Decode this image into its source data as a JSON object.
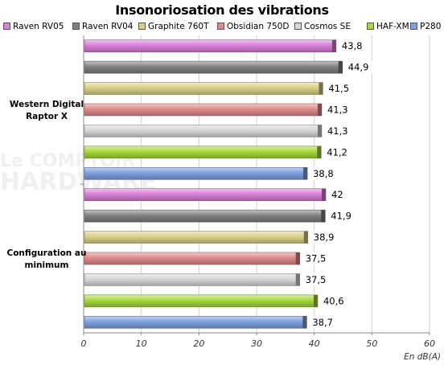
{
  "chart_data": {
    "type": "bar",
    "orientation": "horizontal",
    "title": "Insonoriosation des vibrations",
    "xlabel": "En dB(A)",
    "xlim": [
      0,
      60
    ],
    "xticks": [
      "0",
      "10",
      "20",
      "30",
      "40",
      "50",
      "60"
    ],
    "grid": "vertical",
    "legend_position": "top",
    "categories": [
      "Western Digital Raptor X",
      "Configuration au minimum"
    ],
    "category_lines": [
      [
        "Western Digital",
        "Raptor X"
      ],
      [
        "Configuration au",
        "minimum"
      ]
    ],
    "series": [
      {
        "name": "Raven RV05",
        "color": "#d87fd8",
        "values": [
          43.8,
          42
        ],
        "labels": [
          "43,8",
          "42"
        ]
      },
      {
        "name": "Raven RV04",
        "color": "#808080",
        "values": [
          44.9,
          41.9
        ],
        "labels": [
          "44,9",
          "41,9"
        ]
      },
      {
        "name": "Graphite 760T",
        "color": "#d8d088",
        "values": [
          41.5,
          38.9
        ],
        "labels": [
          "41,5",
          "38,9"
        ]
      },
      {
        "name": "Obsidian 750D",
        "color": "#e08a8a",
        "values": [
          41.3,
          37.5
        ],
        "labels": [
          "41,3",
          "37,5"
        ]
      },
      {
        "name": "Cosmos SE",
        "color": "#d6d6d6",
        "values": [
          41.3,
          37.5
        ],
        "labels": [
          "41,3",
          "37,5"
        ]
      },
      {
        "name": "HAF-XM",
        "color": "#a8d83a",
        "values": [
          41.2,
          40.6
        ],
        "labels": [
          "41,2",
          "40,6"
        ]
      },
      {
        "name": "P280",
        "color": "#7fa0e0",
        "values": [
          38.8,
          38.7
        ],
        "labels": [
          "38,8",
          "38,7"
        ]
      }
    ]
  },
  "watermark": {
    "line1": "Le COMPTOIR",
    "line2": "HARDWARE"
  }
}
